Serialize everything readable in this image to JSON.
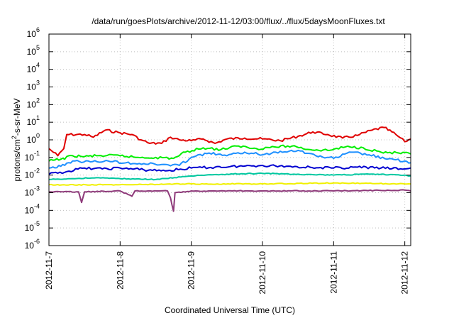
{
  "chart_data": {
    "type": "line",
    "title": "/data/run/goesPlots/archive/2012-11-12/03:00/flux/../flux/5daysMoonFluxes.txt",
    "xlabel": "Coordinated Universal Time (UTC)",
    "ylabel": "protons/cm2-s-sr-MeV",
    "ylabel_parts": {
      "pre": "protons/cm",
      "sup": "2",
      "post": "-s-sr-MeV"
    },
    "yscale": "log",
    "ylim_exp": [
      -6,
      6
    ],
    "y_ticks": [
      {
        "base": "10",
        "exp": "-6"
      },
      {
        "base": "10",
        "exp": "-5"
      },
      {
        "base": "10",
        "exp": "-4"
      },
      {
        "base": "10",
        "exp": "-3"
      },
      {
        "base": "10",
        "exp": "-2"
      },
      {
        "base": "10",
        "exp": "-1"
      },
      {
        "base": "10",
        "exp": "0"
      },
      {
        "base": "10",
        "exp": "1"
      },
      {
        "base": "10",
        "exp": "2"
      },
      {
        "base": "10",
        "exp": "3"
      },
      {
        "base": "10",
        "exp": "4"
      },
      {
        "base": "10",
        "exp": "5"
      },
      {
        "base": "10",
        "exp": "6"
      }
    ],
    "xlim": [
      "2012-11-07T00:00",
      "2012-11-12T02:00"
    ],
    "x_ticks": [
      "2012-11-7",
      "2012-11-8",
      "2012-11-9",
      "2012-11-10",
      "2012-11-11",
      "2012-11-12"
    ],
    "grid": true,
    "series": [
      {
        "color": "#e00000",
        "label_exp": [
          [
            "2012-11-07T00:00",
            -0.5
          ],
          [
            "2012-11-07T03:00",
            -0.9
          ],
          [
            "2012-11-07T05:00",
            -0.5
          ],
          [
            "2012-11-07T06:00",
            0.3
          ],
          [
            "2012-11-07T12:00",
            0.3
          ],
          [
            "2012-11-07T15:00",
            0.15
          ],
          [
            "2012-11-07T19:00",
            0.55
          ],
          [
            "2012-11-08T00:00",
            0.4
          ],
          [
            "2012-11-08T04:00",
            0.3
          ],
          [
            "2012-11-08T07:00",
            0.0
          ],
          [
            "2012-11-08T10:00",
            -0.2
          ],
          [
            "2012-11-08T14:00",
            -0.2
          ],
          [
            "2012-11-08T17:00",
            0.15
          ],
          [
            "2012-11-08T20:00",
            0.0
          ],
          [
            "2012-11-09T00:00",
            -0.05
          ],
          [
            "2012-11-09T04:00",
            0.05
          ],
          [
            "2012-11-09T08:00",
            -0.2
          ],
          [
            "2012-11-09T12:00",
            0.05
          ],
          [
            "2012-11-09T18:00",
            0.1
          ],
          [
            "2012-11-10T00:00",
            0.05
          ],
          [
            "2012-11-10T06:00",
            -0.05
          ],
          [
            "2012-11-10T12:00",
            0.2
          ],
          [
            "2012-11-10T17:00",
            0.45
          ],
          [
            "2012-11-10T22:00",
            0.3
          ],
          [
            "2012-11-11T03:00",
            0.1
          ],
          [
            "2012-11-11T08:00",
            0.25
          ],
          [
            "2012-11-11T13:00",
            0.55
          ],
          [
            "2012-11-11T17:00",
            0.7
          ],
          [
            "2012-11-11T21:00",
            0.3
          ],
          [
            "2012-11-12T00:00",
            -0.1
          ],
          [
            "2012-11-12T02:00",
            0.05
          ]
        ]
      },
      {
        "color": "#00ee00",
        "label_exp": [
          [
            "2012-11-07T00:00",
            -1.2
          ],
          [
            "2012-11-07T04:00",
            -1.1
          ],
          [
            "2012-11-07T08:00",
            -0.9
          ],
          [
            "2012-11-07T12:00",
            -0.95
          ],
          [
            "2012-11-07T16:00",
            -0.9
          ],
          [
            "2012-11-08T00:00",
            -0.9
          ],
          [
            "2012-11-08T06:00",
            -1.0
          ],
          [
            "2012-11-08T12:00",
            -1.0
          ],
          [
            "2012-11-08T18:00",
            -1.05
          ],
          [
            "2012-11-08T22:00",
            -0.7
          ],
          [
            "2012-11-09T04:00",
            -0.45
          ],
          [
            "2012-11-09T10:00",
            -0.55
          ],
          [
            "2012-11-09T16:00",
            -0.35
          ],
          [
            "2012-11-09T22:00",
            -0.5
          ],
          [
            "2012-11-10T04:00",
            -0.4
          ],
          [
            "2012-11-10T10:00",
            -0.35
          ],
          [
            "2012-11-10T16:00",
            -0.55
          ],
          [
            "2012-11-10T22:00",
            -0.6
          ],
          [
            "2012-11-11T04:00",
            -0.4
          ],
          [
            "2012-11-11T10:00",
            -0.45
          ],
          [
            "2012-11-11T16:00",
            -0.7
          ],
          [
            "2012-11-11T22:00",
            -0.75
          ],
          [
            "2012-11-12T02:00",
            -0.8
          ]
        ]
      },
      {
        "color": "#1e90ff",
        "label_exp": [
          [
            "2012-11-07T00:00",
            -1.6
          ],
          [
            "2012-11-07T04:00",
            -1.5
          ],
          [
            "2012-11-07T08:00",
            -1.2
          ],
          [
            "2012-11-07T14:00",
            -1.25
          ],
          [
            "2012-11-07T20:00",
            -1.2
          ],
          [
            "2012-11-08T02:00",
            -1.3
          ],
          [
            "2012-11-08T08:00",
            -1.35
          ],
          [
            "2012-11-08T14:00",
            -1.4
          ],
          [
            "2012-11-08T20:00",
            -1.45
          ],
          [
            "2012-11-09T00:00",
            -1.0
          ],
          [
            "2012-11-09T06:00",
            -0.75
          ],
          [
            "2012-11-09T12:00",
            -0.9
          ],
          [
            "2012-11-09T18:00",
            -0.7
          ],
          [
            "2012-11-10T00:00",
            -0.85
          ],
          [
            "2012-11-10T06:00",
            -0.65
          ],
          [
            "2012-11-10T12:00",
            -0.6
          ],
          [
            "2012-11-10T18:00",
            -0.9
          ],
          [
            "2012-11-11T00:00",
            -1.05
          ],
          [
            "2012-11-11T06:00",
            -0.7
          ],
          [
            "2012-11-11T12:00",
            -0.85
          ],
          [
            "2012-11-11T18:00",
            -1.1
          ],
          [
            "2012-11-12T00:00",
            -1.2
          ],
          [
            "2012-11-12T02:00",
            -1.3
          ]
        ]
      },
      {
        "color": "#0000d0",
        "label_exp": [
          [
            "2012-11-07T00:00",
            -1.95
          ],
          [
            "2012-11-07T06:00",
            -1.8
          ],
          [
            "2012-11-07T12:00",
            -1.6
          ],
          [
            "2012-11-07T18:00",
            -1.65
          ],
          [
            "2012-11-08T00:00",
            -1.6
          ],
          [
            "2012-11-08T08:00",
            -1.7
          ],
          [
            "2012-11-08T16:00",
            -1.75
          ],
          [
            "2012-11-09T00:00",
            -1.6
          ],
          [
            "2012-11-09T08:00",
            -1.55
          ],
          [
            "2012-11-09T16:00",
            -1.5
          ],
          [
            "2012-11-10T00:00",
            -1.45
          ],
          [
            "2012-11-10T08:00",
            -1.5
          ],
          [
            "2012-11-10T16:00",
            -1.55
          ],
          [
            "2012-11-11T00:00",
            -1.6
          ],
          [
            "2012-11-11T08:00",
            -1.55
          ],
          [
            "2012-11-11T16:00",
            -1.6
          ],
          [
            "2012-11-12T00:00",
            -1.65
          ],
          [
            "2012-11-12T02:00",
            -1.6
          ]
        ]
      },
      {
        "color": "#00c8a0",
        "label_exp": [
          [
            "2012-11-07T00:00",
            -2.25
          ],
          [
            "2012-11-07T08:00",
            -2.2
          ],
          [
            "2012-11-07T16:00",
            -2.15
          ],
          [
            "2012-11-08T00:00",
            -2.2
          ],
          [
            "2012-11-08T12:00",
            -2.25
          ],
          [
            "2012-11-09T00:00",
            -2.05
          ],
          [
            "2012-11-09T12:00",
            -1.95
          ],
          [
            "2012-11-10T00:00",
            -1.9
          ],
          [
            "2012-11-10T12:00",
            -1.95
          ],
          [
            "2012-11-11T00:00",
            -2.0
          ],
          [
            "2012-11-11T12:00",
            -1.95
          ],
          [
            "2012-11-12T00:00",
            -2.0
          ],
          [
            "2012-11-12T02:00",
            -2.05
          ]
        ]
      },
      {
        "color": "#f0f000",
        "label_exp": [
          [
            "2012-11-07T00:00",
            -2.55
          ],
          [
            "2012-11-08T00:00",
            -2.55
          ],
          [
            "2012-11-09T00:00",
            -2.5
          ],
          [
            "2012-11-10T00:00",
            -2.5
          ],
          [
            "2012-11-11T00:00",
            -2.45
          ],
          [
            "2012-11-12T00:00",
            -2.5
          ],
          [
            "2012-11-12T02:00",
            -2.5
          ]
        ]
      },
      {
        "color": "#8e3a7a",
        "label_exp": [
          [
            "2012-11-07T00:00",
            -2.95
          ],
          [
            "2012-11-07T10:00",
            -2.95
          ],
          [
            "2012-11-07T11:00",
            -3.55
          ],
          [
            "2012-11-07T12:00",
            -2.95
          ],
          [
            "2012-11-08T00:00",
            -2.9
          ],
          [
            "2012-11-08T04:00",
            -3.2
          ],
          [
            "2012-11-08T05:00",
            -2.9
          ],
          [
            "2012-11-08T16:00",
            -2.9
          ],
          [
            "2012-11-08T17:00",
            -3.3
          ],
          [
            "2012-11-08T17:30",
            -3.7
          ],
          [
            "2012-11-08T18:00",
            -4.05
          ],
          [
            "2012-11-08T18:30",
            -3.0
          ],
          [
            "2012-11-09T00:00",
            -2.9
          ],
          [
            "2012-11-10T00:00",
            -2.9
          ],
          [
            "2012-11-11T00:00",
            -2.9
          ],
          [
            "2012-11-12T00:00",
            -2.85
          ],
          [
            "2012-11-12T02:00",
            -2.9
          ]
        ]
      }
    ]
  }
}
